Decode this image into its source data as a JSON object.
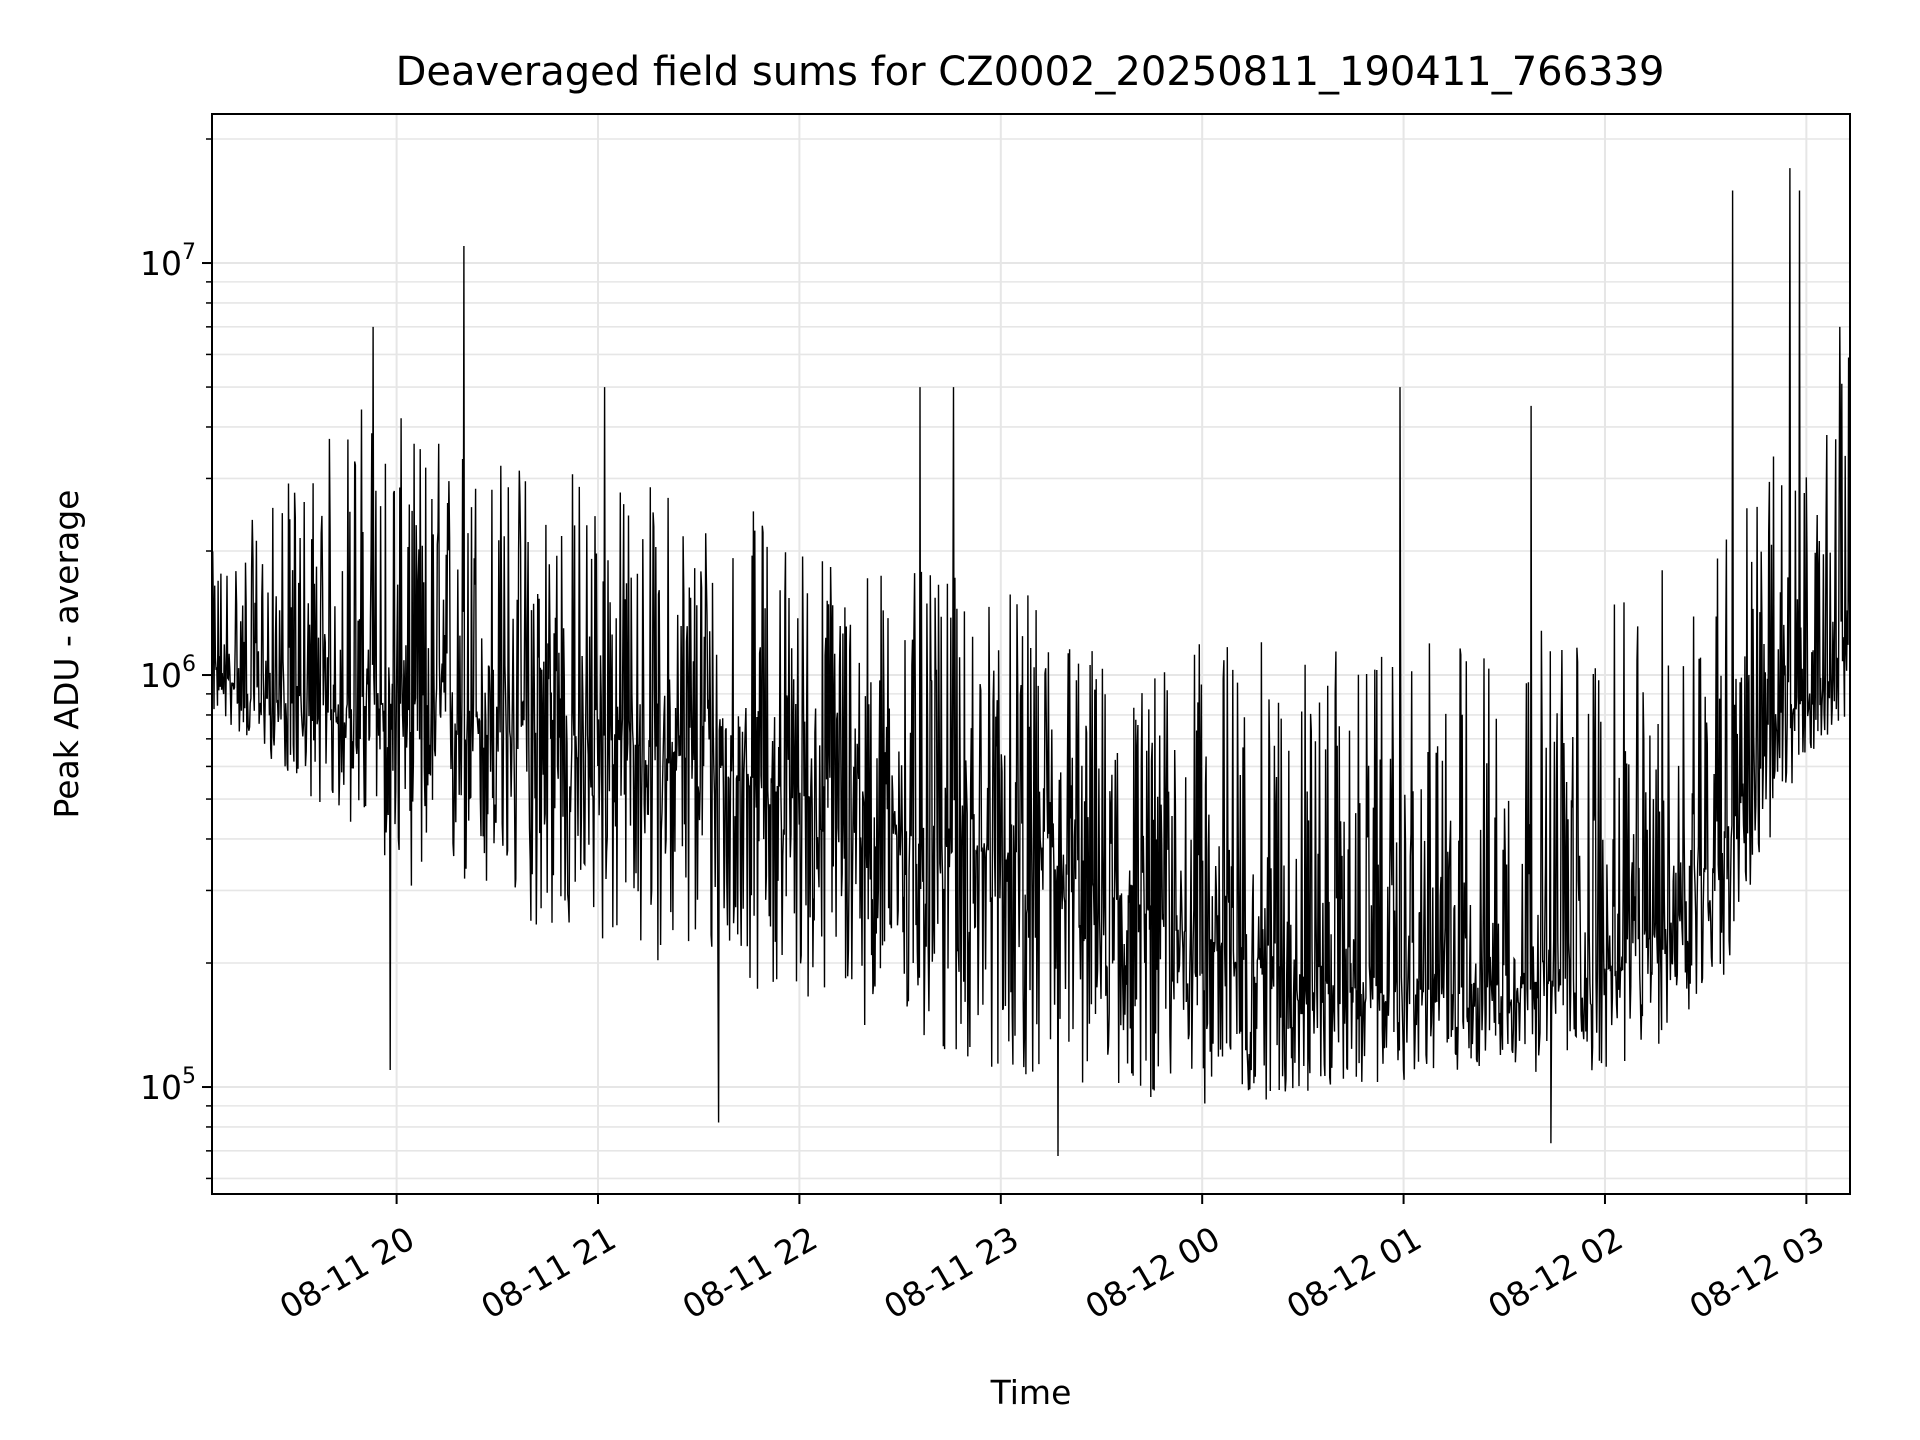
{
  "chart_data": {
    "type": "line",
    "title": "Deaveraged field sums for CZ0002_20250811_190411_766339",
    "xlabel": "Time",
    "ylabel": "Peak ADU - average",
    "yscale": "log",
    "grid": true,
    "xlim": [
      "2025-08-11 19:05",
      "2025-08-12 03:13"
    ],
    "ylim": [
      55000,
      23000000
    ],
    "xticks": [
      {
        "value": "2025-08-11 20:00",
        "label": "08-11 20"
      },
      {
        "value": "2025-08-11 21:00",
        "label": "08-11 21"
      },
      {
        "value": "2025-08-11 22:00",
        "label": "08-11 22"
      },
      {
        "value": "2025-08-11 23:00",
        "label": "08-11 23"
      },
      {
        "value": "2025-08-12 00:00",
        "label": "08-12 00"
      },
      {
        "value": "2025-08-12 01:00",
        "label": "08-12 01"
      },
      {
        "value": "2025-08-12 02:00",
        "label": "08-12 02"
      },
      {
        "value": "2025-08-12 03:00",
        "label": "08-12 03"
      }
    ],
    "yticks": [
      {
        "value": 100000,
        "base": "10",
        "exp": "5"
      },
      {
        "value": 1000000,
        "base": "10",
        "exp": "6"
      },
      {
        "value": 10000000,
        "base": "10",
        "exp": "7"
      }
    ],
    "series": [
      {
        "color": "#000000",
        "x": [
          "2025-08-11 19:05",
          "2025-08-11 19:20",
          "2025-08-11 19:35",
          "2025-08-11 19:50",
          "2025-08-11 20:05",
          "2025-08-11 20:20",
          "2025-08-11 20:35",
          "2025-08-11 20:50",
          "2025-08-11 21:05",
          "2025-08-11 21:20",
          "2025-08-11 21:35",
          "2025-08-11 21:50",
          "2025-08-11 22:05",
          "2025-08-11 22:20",
          "2025-08-11 22:35",
          "2025-08-11 22:50",
          "2025-08-11 23:05",
          "2025-08-11 23:20",
          "2025-08-11 23:35",
          "2025-08-11 23:50",
          "2025-08-12 00:05",
          "2025-08-12 00:20",
          "2025-08-12 00:35",
          "2025-08-12 00:50",
          "2025-08-12 01:05",
          "2025-08-12 01:20",
          "2025-08-12 01:35",
          "2025-08-12 01:50",
          "2025-08-12 02:05",
          "2025-08-12 02:20",
          "2025-08-12 02:35",
          "2025-08-12 02:50",
          "2025-08-12 03:05",
          "2025-08-12 03:13"
        ],
        "y": [
          1000000,
          900000,
          800000,
          850000,
          850000,
          800000,
          750000,
          700000,
          700000,
          650000,
          600000,
          550000,
          500000,
          450000,
          400000,
          380000,
          350000,
          320000,
          280000,
          250000,
          220000,
          200000,
          180000,
          170000,
          170000,
          180000,
          180000,
          180000,
          200000,
          250000,
          400000,
          700000,
          1000000,
          1200000
        ],
        "y_low": [
          800000,
          650000,
          500000,
          400000,
          300000,
          280000,
          250000,
          220000,
          210000,
          200000,
          180000,
          170000,
          160000,
          140000,
          120000,
          110000,
          105000,
          100000,
          95000,
          92000,
          90000,
          92000,
          95000,
          100000,
          105000,
          110000,
          110000,
          105000,
          110000,
          130000,
          180000,
          400000,
          700000,
          800000
        ],
        "y_high": [
          2000000,
          2500000,
          3500000,
          5000000,
          4000000,
          4000000,
          3500000,
          3500000,
          3000000,
          3000000,
          2800000,
          2500000,
          2200000,
          2000000,
          1800000,
          1700000,
          1600000,
          1500000,
          1000000,
          1100000,
          1300000,
          1200000,
          1200000,
          1100000,
          1200000,
          1300000,
          1300000,
          1400000,
          1500000,
          2000000,
          2500000,
          3500000,
          3500000,
          7000000
        ],
        "spikes": [
          {
            "x": "2025-08-11 19:53",
            "y": 7000000
          },
          {
            "x": "2025-08-11 20:20",
            "y": 11000000
          },
          {
            "x": "2025-08-11 19:58",
            "y": 110000
          },
          {
            "x": "2025-08-11 21:02",
            "y": 5000000
          },
          {
            "x": "2025-08-11 21:36",
            "y": 82000
          },
          {
            "x": "2025-08-11 22:36",
            "y": 5000000
          },
          {
            "x": "2025-08-11 22:46",
            "y": 5000000
          },
          {
            "x": "2025-08-11 23:17",
            "y": 68000
          },
          {
            "x": "2025-08-12 00:59",
            "y": 5000000
          },
          {
            "x": "2025-08-12 01:38",
            "y": 4500000
          },
          {
            "x": "2025-08-12 01:44",
            "y": 73000
          },
          {
            "x": "2025-08-12 02:38",
            "y": 15000000
          },
          {
            "x": "2025-08-12 02:55",
            "y": 17000000
          },
          {
            "x": "2025-08-12 02:58",
            "y": 15000000
          },
          {
            "x": "2025-08-12 03:10",
            "y": 7000000
          }
        ]
      }
    ]
  }
}
